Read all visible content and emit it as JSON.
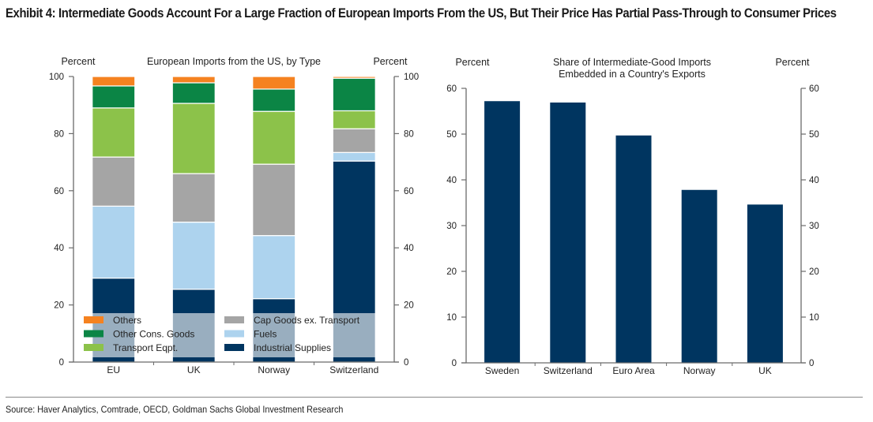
{
  "title": "Exhibit 4: Intermediate Goods Account For a Large Fraction of European Imports From the US, But Their Price Has Partial Pass-Through to Consumer Prices",
  "source": "Source: Haver Analytics, Comtrade, OECD, Goldman Sachs Global Investment Research",
  "chart_data": [
    {
      "type": "bar",
      "stacked": true,
      "title": "European Imports from the US, by Type",
      "ylabel_left": "Percent",
      "ylabel_right": "Percent",
      "xlabel": "",
      "ylim": [
        0,
        100
      ],
      "yticks": [
        0,
        20,
        40,
        60,
        80,
        100
      ],
      "grid": false,
      "legend_position": "bottom-left (inside)",
      "categories": [
        "EU",
        "UK",
        "Norway",
        "Switzerland"
      ],
      "series": [
        {
          "name": "Industrial Supplies",
          "color": "#003560",
          "values": [
            29.4,
            25.5,
            22.2,
            70.4
          ]
        },
        {
          "name": "Fuels",
          "color": "#add3ee",
          "values": [
            25.2,
            23.5,
            22.1,
            3.0
          ]
        },
        {
          "name": "Cap Goods ex. Transport",
          "color": "#a5a5a5",
          "values": [
            17.2,
            17.0,
            25.0,
            8.3
          ]
        },
        {
          "name": "Transport Eqpt.",
          "color": "#8cc24a",
          "values": [
            17.2,
            24.6,
            18.5,
            6.3
          ]
        },
        {
          "name": "Other Cons. Goods",
          "color": "#0b8545",
          "values": [
            7.7,
            7.2,
            7.8,
            11.4
          ]
        },
        {
          "name": "Others",
          "color": "#f58220",
          "values": [
            3.3,
            2.2,
            4.4,
            0.6
          ]
        }
      ],
      "legend": [
        {
          "name": "Others",
          "color": "#f58220"
        },
        {
          "name": "Other Cons. Goods",
          "color": "#0b8545"
        },
        {
          "name": "Transport Eqpt.",
          "color": "#8cc24a"
        },
        {
          "name": "Cap Goods ex. Transport",
          "color": "#a5a5a5"
        },
        {
          "name": "Fuels",
          "color": "#add3ee"
        },
        {
          "name": "Industrial Supplies",
          "color": "#003560"
        }
      ]
    },
    {
      "type": "bar",
      "title": "Share of Intermediate-Good Imports Embedded in a Country's Exports",
      "title_lines": [
        "Share of Intermediate-Good Imports",
        "Embedded in a Country's Exports"
      ],
      "ylabel_left": "Percent",
      "ylabel_right": "Percent",
      "xlabel": "",
      "ylim": [
        0,
        60
      ],
      "yticks": [
        0,
        10,
        20,
        30,
        40,
        50,
        60
      ],
      "grid": false,
      "categories": [
        "Sweden",
        "Switzerland",
        "Euro Area",
        "Norway",
        "UK"
      ],
      "values": [
        57.2,
        56.9,
        49.7,
        37.8,
        34.6
      ],
      "color": "#003560"
    }
  ]
}
